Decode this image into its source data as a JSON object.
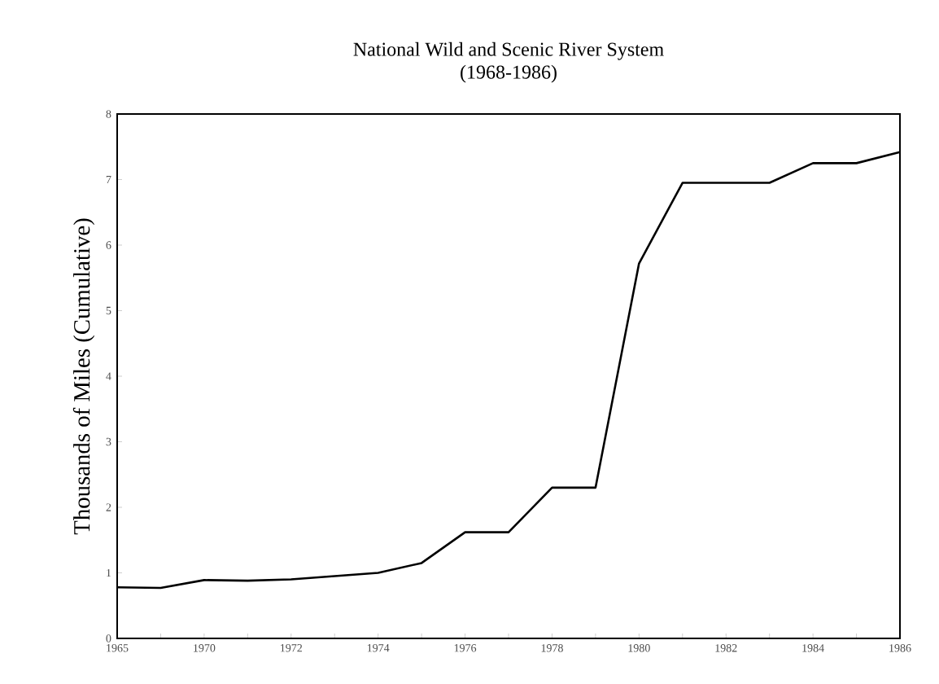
{
  "chart_data": {
    "type": "line",
    "title": "National Wild and Scenic River System",
    "subtitle": "(1968-1986)",
    "ylabel": "Thousands of Miles (Cumulative)",
    "categories": [
      "1965",
      null,
      "1970",
      null,
      "1972",
      null,
      "1974",
      null,
      "1976",
      null,
      "1978",
      null,
      "1980",
      null,
      "1982",
      null,
      "1984",
      null,
      "1986"
    ],
    "series": [
      {
        "color": "#000000",
        "values": [
          0.78,
          0.77,
          0.89,
          0.88,
          0.9,
          0.95,
          1.0,
          1.15,
          1.62,
          1.62,
          2.3,
          2.3,
          5.72,
          6.95,
          6.95,
          6.95,
          7.25,
          7.25,
          7.42
        ]
      }
    ],
    "ylim": [
      0,
      8
    ],
    "yticks": [
      0,
      1,
      2,
      3,
      4,
      5,
      6,
      7,
      8
    ],
    "grid": false,
    "marker": "none",
    "line_style": "solid"
  }
}
